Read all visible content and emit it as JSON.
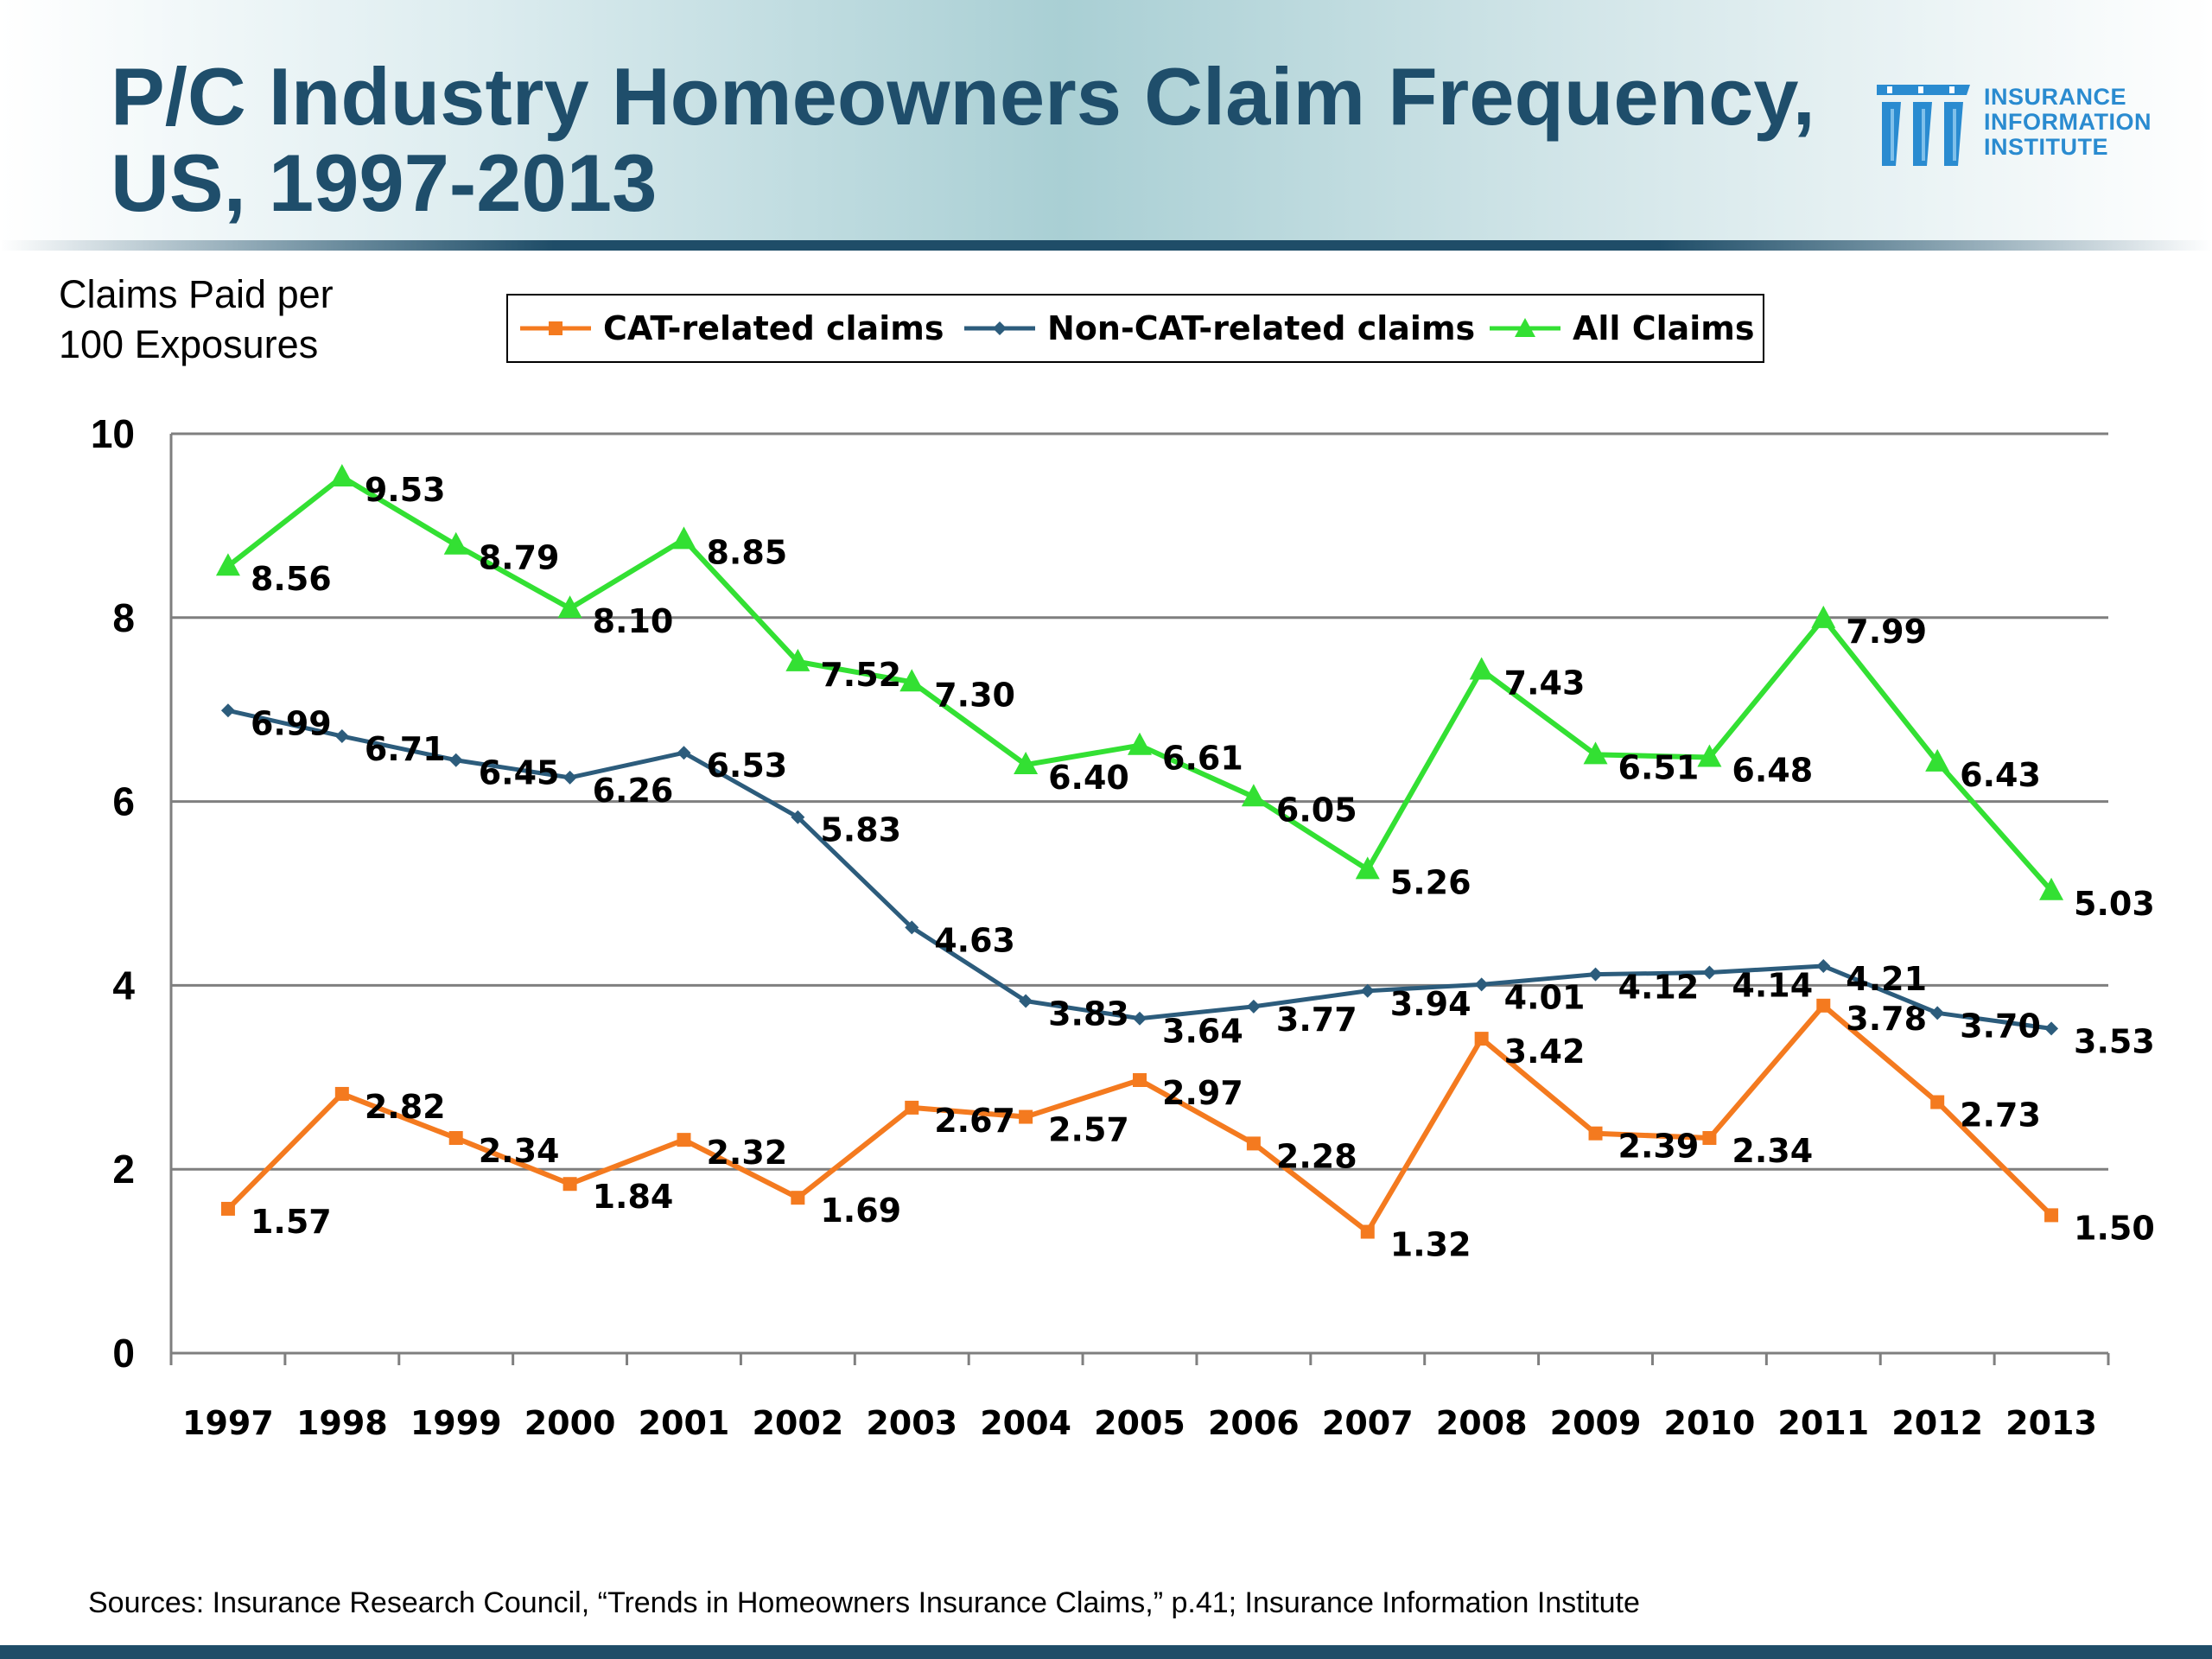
{
  "title": {
    "line1": "P/C Industry Homeowners Claim Frequency,",
    "line2": "US, 1997-2013"
  },
  "logo": {
    "line1": "INSURANCE",
    "line2": "INFORMATION",
    "line3": "INSTITUTE"
  },
  "source": "Sources: Insurance Research Council, “Trends in Homeowners Insurance Claims,” p.41; Insurance Information Institute",
  "colors": {
    "title": "#1f4e6b",
    "cat": "#f47a1f",
    "noncat": "#2c5c7c",
    "all": "#33e033",
    "logo": "#2a8bd0"
  },
  "chart_data": {
    "type": "line",
    "title": "P/C Industry Homeowners Claim Frequency, US, 1997-2013",
    "ylabel_lines": [
      "Claims Paid per",
      "100 Exposures"
    ],
    "xlabel": "",
    "ylim": [
      0,
      10
    ],
    "yticks": [
      "0",
      "2",
      "4",
      "6",
      "8",
      "10"
    ],
    "grid": "horizontal",
    "legend_position": "top",
    "categories": [
      "1997",
      "1998",
      "1999",
      "2000",
      "2001",
      "2002",
      "2003",
      "2004",
      "2005",
      "2006",
      "2007",
      "2008",
      "2009",
      "2010",
      "2011",
      "2012",
      "2013"
    ],
    "series": [
      {
        "name": "CAT-related claims",
        "marker": "square",
        "values": [
          1.57,
          2.82,
          2.34,
          1.84,
          2.32,
          1.69,
          2.67,
          2.57,
          2.97,
          2.28,
          1.32,
          3.42,
          2.39,
          2.34,
          3.78,
          2.73,
          1.5
        ],
        "labels": [
          "1.57",
          "2.82",
          "2.34",
          "1.84",
          "2.32",
          "1.69",
          "2.67",
          "2.57",
          "2.97",
          "2.28",
          "1.32",
          "3.42",
          "2.39",
          "2.34",
          "3.78",
          "2.73",
          "1.50"
        ]
      },
      {
        "name": "Non-CAT-related claims",
        "marker": "diamond",
        "values": [
          6.99,
          6.71,
          6.45,
          6.26,
          6.53,
          5.83,
          4.63,
          3.83,
          3.64,
          3.77,
          3.94,
          4.01,
          4.12,
          4.14,
          4.21,
          3.7,
          3.53
        ],
        "labels": [
          "6.99",
          "6.71",
          "6.45",
          "6.26",
          "6.53",
          "5.83",
          "4.63",
          "3.83",
          "3.64",
          "3.77",
          "3.94",
          "4.01",
          "4.12",
          "4.14",
          "4.21",
          "3.70",
          "3.53"
        ]
      },
      {
        "name": "All Claims",
        "marker": "triangle",
        "values": [
          8.56,
          9.53,
          8.79,
          8.1,
          8.85,
          7.52,
          7.3,
          6.4,
          6.61,
          6.05,
          5.26,
          7.43,
          6.51,
          6.48,
          7.99,
          6.43,
          5.03
        ],
        "labels": [
          "8.56",
          "9.53",
          "8.79",
          "8.10",
          "8.85",
          "7.52",
          "7.30",
          "6.40",
          "6.61",
          "6.05",
          "5.26",
          "7.43",
          "6.51",
          "6.48",
          "7.99",
          "6.43",
          "5.03"
        ]
      }
    ]
  }
}
